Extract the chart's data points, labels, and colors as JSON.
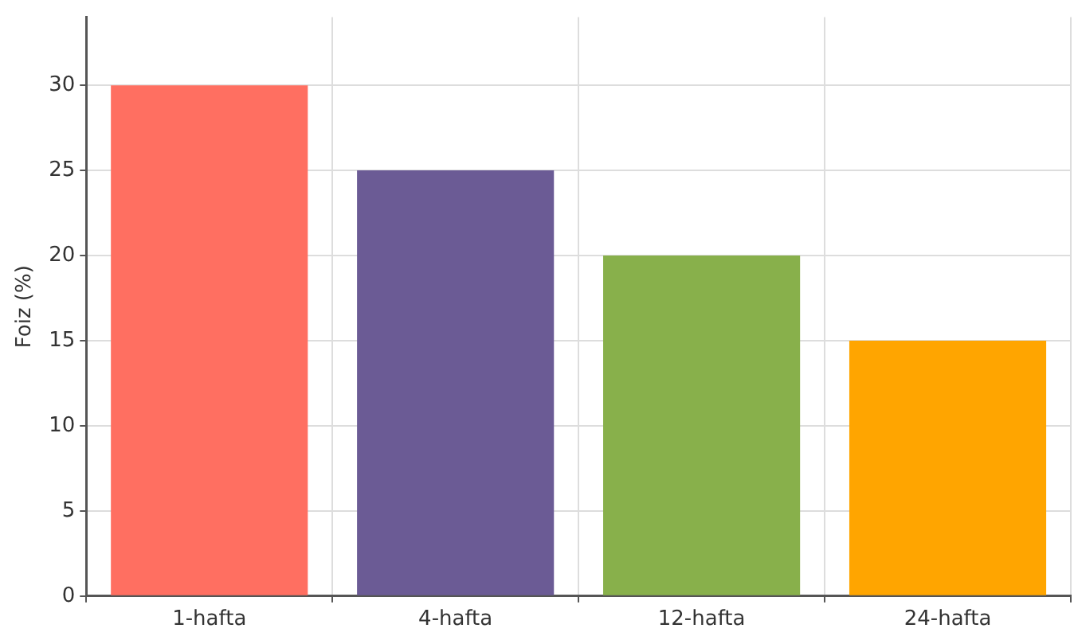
{
  "chart_data": {
    "type": "bar",
    "ylabel": "Foiz (%)",
    "categories": [
      "1-hafta",
      "4-hafta",
      "12-hafta",
      "24-hafta"
    ],
    "values": [
      30,
      25,
      20,
      15
    ],
    "colors": [
      "#ff6f61",
      "#6b5b95",
      "#88b04b",
      "#ffa500"
    ],
    "ylim": [
      0,
      34
    ],
    "yticks": [
      0,
      5,
      10,
      15,
      20,
      25,
      30
    ],
    "grid": true
  }
}
